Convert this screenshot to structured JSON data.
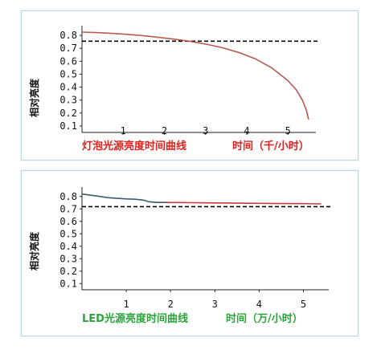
{
  "chart_data": [
    {
      "type": "line",
      "ylabel": "相对亮度",
      "caption_left": "灯泡光源亮度时间曲线",
      "caption_right": "时间（千/小时）",
      "caption_color": "#e0201c",
      "xlim": [
        0,
        5.6
      ],
      "ylim": [
        0.05,
        0.85
      ],
      "x_ticks": [
        1,
        2,
        3,
        4,
        5
      ],
      "y_ticks": [
        0.1,
        0.2,
        0.3,
        0.4,
        0.5,
        0.6,
        0.7,
        0.8
      ],
      "reference_line": {
        "y": 0.755,
        "style": "dashed",
        "color": "#000000"
      },
      "series": [
        {
          "color": "#b85a50",
          "x": [
            0,
            0.3,
            0.6,
            1.0,
            1.4,
            1.8,
            2.2,
            2.6,
            3.0,
            3.4,
            3.8,
            4.2,
            4.6,
            5.0,
            5.2,
            5.35,
            5.45,
            5.5
          ],
          "y": [
            0.825,
            0.822,
            0.818,
            0.81,
            0.8,
            0.787,
            0.772,
            0.755,
            0.733,
            0.705,
            0.668,
            0.62,
            0.55,
            0.45,
            0.38,
            0.3,
            0.22,
            0.15
          ]
        }
      ]
    },
    {
      "type": "line",
      "ylabel": "相对亮度",
      "caption_left": "LED光源亮度时间曲线",
      "caption_right": "时间（万/小时）",
      "caption_color": "#2aa43a",
      "xlim": [
        0,
        5.5
      ],
      "ylim": [
        0.05,
        0.85
      ],
      "x_ticks": [
        1,
        2,
        3,
        4,
        5
      ],
      "y_ticks": [
        0.1,
        0.2,
        0.3,
        0.4,
        0.5,
        0.6,
        0.7,
        0.8
      ],
      "reference_line": {
        "y": 0.718,
        "style": "dashed",
        "color": "#000000"
      },
      "series": [
        {
          "color": "#3c5a72",
          "x": [
            0,
            0.2,
            0.4,
            0.6,
            0.8,
            1.0,
            1.2,
            1.4,
            1.5,
            1.7,
            1.9,
            2.0
          ],
          "y": [
            0.82,
            0.81,
            0.8,
            0.79,
            0.785,
            0.78,
            0.778,
            0.77,
            0.758,
            0.752,
            0.752,
            0.75
          ]
        },
        {
          "color": "#c8383a",
          "x": [
            1.9,
            2.5,
            3.0,
            3.5,
            4.0,
            4.5,
            5.0,
            5.4
          ],
          "y": [
            0.752,
            0.75,
            0.748,
            0.746,
            0.745,
            0.743,
            0.742,
            0.74
          ]
        }
      ]
    }
  ]
}
